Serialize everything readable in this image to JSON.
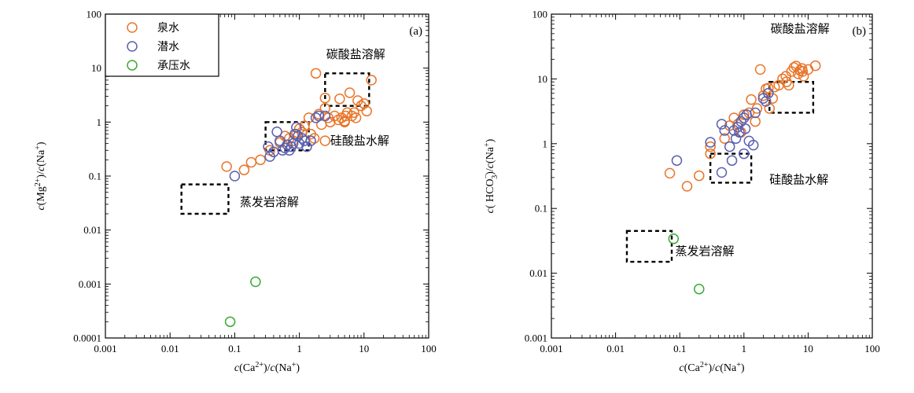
{
  "colors": {
    "spring": "#e8762b",
    "phreatic": "#5a60b0",
    "confined": "#3aaa35"
  },
  "legend": [
    "泉水",
    "潜水",
    "承压水"
  ],
  "chart_data": [
    {
      "type": "scatter",
      "panel_label": "(a)",
      "xlabel": {
        "pre": "c",
        "a": "(Ca",
        "a_sup": "2+",
        "b": ")/",
        "c": "c",
        "d": "(Na",
        "d_sup": "+",
        "e": ")"
      },
      "ylabel": {
        "pre": "c",
        "a": "(Mg",
        "a_sup": "2+",
        "b": ")/",
        "c": "c",
        "d": "(Na",
        "d_sup": "+",
        "e": ")"
      },
      "x_scale": "log",
      "y_scale": "log",
      "xlim": [
        0.001,
        100
      ],
      "ylim": [
        0.0001,
        100
      ],
      "xticks": [
        "0.001",
        "0.01",
        "0.1",
        "1",
        "10",
        "100"
      ],
      "yticks": [
        "0.0001",
        "0.001",
        "0.01",
        "0.1",
        "1",
        "10",
        "100"
      ],
      "regions": [
        {
          "label": "碳酸盐溶解",
          "x": [
            2.5,
            12
          ],
          "y": [
            2,
            8
          ],
          "label_at": [
            2.6,
            18
          ]
        },
        {
          "label": "硅酸盐水解",
          "x": [
            0.3,
            1.4
          ],
          "y": [
            0.3,
            1
          ],
          "label_at": [
            3,
            0.45
          ]
        },
        {
          "label": "蒸发岩溶解",
          "x": [
            0.015,
            0.08
          ],
          "y": [
            0.02,
            0.07
          ],
          "label_at": [
            0.12,
            0.033
          ]
        }
      ],
      "series": [
        {
          "name": "泉水",
          "points": [
            [
              0.075,
              0.15
            ],
            [
              0.14,
              0.13
            ],
            [
              0.18,
              0.18
            ],
            [
              0.25,
              0.2
            ],
            [
              0.35,
              0.3
            ],
            [
              0.5,
              0.42
            ],
            [
              0.6,
              0.55
            ],
            [
              0.7,
              0.5
            ],
            [
              0.8,
              0.45
            ],
            [
              0.9,
              0.6
            ],
            [
              1.0,
              0.75
            ],
            [
              1.1,
              0.65
            ],
            [
              1.2,
              0.85
            ],
            [
              1.4,
              1.2
            ],
            [
              1.5,
              0.6
            ],
            [
              1.7,
              0.5
            ],
            [
              2.0,
              1.4
            ],
            [
              2.2,
              0.9
            ],
            [
              2.5,
              0.45
            ],
            [
              2.5,
              1.8
            ],
            [
              2.8,
              1.2
            ],
            [
              3.0,
              1.0
            ],
            [
              3.5,
              1.3
            ],
            [
              4.0,
              1.1
            ],
            [
              4.5,
              1.2
            ],
            [
              5.0,
              1.0
            ],
            [
              5.5,
              1.5
            ],
            [
              6.0,
              3.5
            ],
            [
              7.0,
              1.5
            ],
            [
              7.5,
              1.2
            ],
            [
              8.0,
              2.5
            ],
            [
              9.0,
              2.0
            ],
            [
              10.0,
              2.2
            ],
            [
              13.0,
              6.0
            ],
            [
              1.8,
              8.0
            ],
            [
              2.5,
              2.8
            ],
            [
              4.2,
              2.7
            ],
            [
              5.0,
              1.05
            ],
            [
              5.2,
              1.3
            ],
            [
              6.5,
              1.3
            ],
            [
              11.0,
              1.6
            ]
          ]
        },
        {
          "name": "潜水",
          "points": [
            [
              0.1,
              0.1
            ],
            [
              0.33,
              0.35
            ],
            [
              0.35,
              0.23
            ],
            [
              0.4,
              0.28
            ],
            [
              0.45,
              0.66
            ],
            [
              0.5,
              0.45
            ],
            [
              0.55,
              0.3
            ],
            [
              0.6,
              0.33
            ],
            [
              0.7,
              0.3
            ],
            [
              0.75,
              0.35
            ],
            [
              0.8,
              0.4
            ],
            [
              0.85,
              0.6
            ],
            [
              0.9,
              0.8
            ],
            [
              1.0,
              0.4
            ],
            [
              1.1,
              0.5
            ],
            [
              1.2,
              0.45
            ],
            [
              1.3,
              0.35
            ],
            [
              1.5,
              0.45
            ],
            [
              1.8,
              1.2
            ],
            [
              2.0,
              1.3
            ],
            [
              2.5,
              1.3
            ],
            [
              0.95,
              0.55
            ],
            [
              0.65,
              0.38
            ]
          ]
        },
        {
          "name": "承压水",
          "points": [
            [
              0.085,
              0.0002
            ],
            [
              0.21,
              0.0011
            ]
          ]
        }
      ]
    },
    {
      "type": "scatter",
      "panel_label": "(b)",
      "xlabel": {
        "pre": "c",
        "a": "(Ca",
        "a_sup": "2+",
        "b": ")/",
        "c": "c",
        "d": "(Na",
        "d_sup": "+",
        "e": ")"
      },
      "ylabel": {
        "pre": "c",
        "a": "( HCO",
        "a_sup": "−",
        "a_sub": "3",
        "b": ")/",
        "c": "c",
        "d": "(Na",
        "d_sup": "+",
        "e": ")"
      },
      "x_scale": "log",
      "y_scale": "log",
      "xlim": [
        0.001,
        100
      ],
      "ylim": [
        0.001,
        100
      ],
      "xticks": [
        "0.001",
        "0.01",
        "0.1",
        "1",
        "10",
        "100"
      ],
      "yticks": [
        "0.001",
        "0.01",
        "0.1",
        "1",
        "10",
        "100"
      ],
      "regions": [
        {
          "label": "碳酸盐溶解",
          "x": [
            2.5,
            12
          ],
          "y": [
            3,
            9
          ],
          "label_at": [
            2.6,
            60
          ]
        },
        {
          "label": "硅酸盐水解",
          "x": [
            0.3,
            1.3
          ],
          "y": [
            0.25,
            0.7
          ],
          "label_at": [
            2.5,
            0.28
          ]
        },
        {
          "label": "蒸发岩溶解",
          "x": [
            0.015,
            0.075
          ],
          "y": [
            0.015,
            0.045
          ],
          "label_at": [
            0.085,
            0.022
          ]
        }
      ],
      "series": [
        {
          "name": "泉水",
          "points": [
            [
              0.07,
              0.35
            ],
            [
              0.13,
              0.22
            ],
            [
              0.2,
              0.32
            ],
            [
              0.3,
              0.7
            ],
            [
              0.3,
              0.9
            ],
            [
              0.5,
              1.2
            ],
            [
              0.6,
              1.9
            ],
            [
              0.7,
              2.5
            ],
            [
              0.8,
              2.0
            ],
            [
              0.9,
              1.5
            ],
            [
              1.0,
              2.8
            ],
            [
              1.2,
              3.0
            ],
            [
              1.3,
              4.8
            ],
            [
              1.5,
              2.2
            ],
            [
              1.6,
              3.5
            ],
            [
              1.8,
              14.0
            ],
            [
              2.0,
              5.5
            ],
            [
              2.2,
              7.0
            ],
            [
              2.5,
              3.5
            ],
            [
              2.8,
              5.0
            ],
            [
              3.0,
              7.5
            ],
            [
              3.5,
              8.0
            ],
            [
              4.0,
              10.0
            ],
            [
              4.5,
              11.0
            ],
            [
              5.0,
              8.0
            ],
            [
              5.5,
              13.0
            ],
            [
              6.0,
              15.0
            ],
            [
              7.0,
              12.0
            ],
            [
              7.5,
              13.5
            ],
            [
              8.0,
              14.5
            ],
            [
              8.5,
              11.0
            ],
            [
              10.0,
              14.0
            ],
            [
              13.0,
              16.0
            ],
            [
              2.4,
              7.2
            ],
            [
              4.6,
              9.0
            ],
            [
              6.5,
              15.8
            ],
            [
              8.2,
              13.0
            ]
          ]
        },
        {
          "name": "潜水",
          "points": [
            [
              0.09,
              0.55
            ],
            [
              0.3,
              1.05
            ],
            [
              0.45,
              2.0
            ],
            [
              0.45,
              0.36
            ],
            [
              0.5,
              1.6
            ],
            [
              0.6,
              0.9
            ],
            [
              0.65,
              0.55
            ],
            [
              0.7,
              1.6
            ],
            [
              0.8,
              1.8
            ],
            [
              0.85,
              1.5
            ],
            [
              0.9,
              2.2
            ],
            [
              1.0,
              2.5
            ],
            [
              1.0,
              0.7
            ],
            [
              1.1,
              2.8
            ],
            [
              1.2,
              1.1
            ],
            [
              1.4,
              0.95
            ],
            [
              1.5,
              3.0
            ],
            [
              2.0,
              5.0
            ],
            [
              2.2,
              4.5
            ],
            [
              2.4,
              6.0
            ],
            [
              1.05,
              1.7
            ],
            [
              0.75,
              1.2
            ]
          ]
        },
        {
          "name": "承压水",
          "points": [
            [
              0.08,
              0.034
            ],
            [
              0.2,
              0.0057
            ]
          ]
        }
      ]
    }
  ]
}
